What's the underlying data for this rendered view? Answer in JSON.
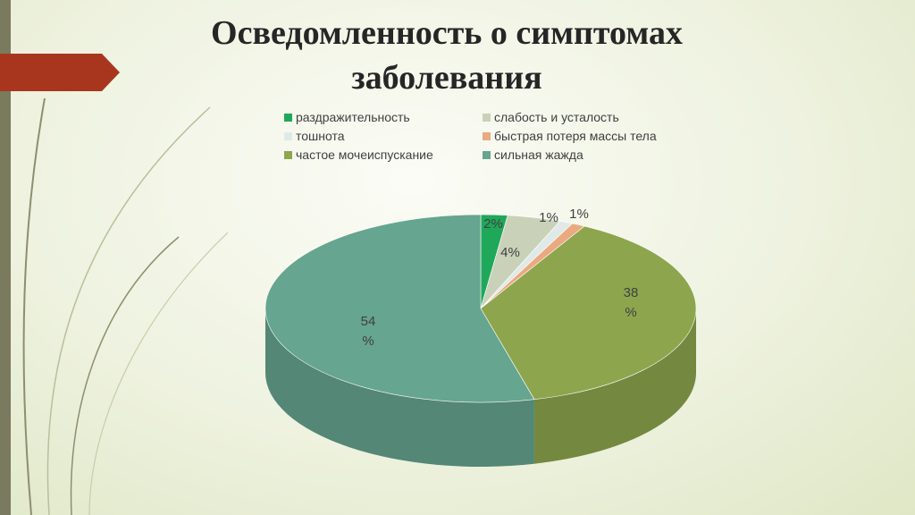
{
  "slide": {
    "title_line1": "Осведомленность о симптомах",
    "title_line2": "заболевания"
  },
  "colors": {
    "accent_tab": "#a8361f",
    "left_bar": "#7a7a5e"
  },
  "chart_data": {
    "type": "pie",
    "title": "",
    "legend_position": "top",
    "categories": [
      "раздражительность",
      "слабость и усталость",
      "тошнота",
      "быстрая потеря массы тела",
      "частое мочеиспускание",
      "сильная жажда"
    ],
    "values": [
      2,
      4,
      1,
      1,
      38,
      54
    ],
    "labels": [
      "2%",
      "4%",
      "1%",
      "1%",
      "38 %",
      "54 %"
    ],
    "colors": [
      "#1fa85a",
      "#c9d2b8",
      "#dfeae8",
      "#eba97f",
      "#8da64e",
      "#66a58f"
    ]
  }
}
